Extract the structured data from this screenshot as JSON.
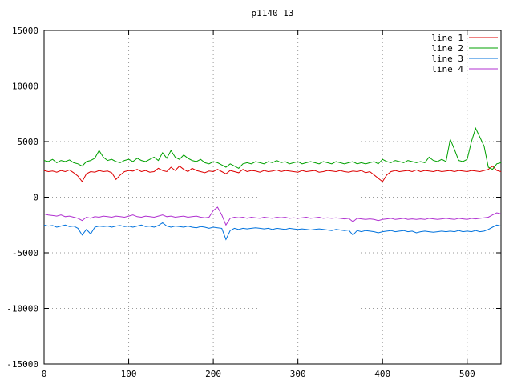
{
  "window": {
    "title": "p1140_13"
  },
  "colors": {
    "background": "#ffffff",
    "border": "#000000",
    "grid": "#9a9a9a",
    "text": "#000000"
  },
  "chart_data": {
    "type": "line",
    "title": "p1140_13",
    "xlabel": "",
    "ylabel": "",
    "xlim": [
      0,
      540
    ],
    "ylim": [
      -15000,
      15000
    ],
    "xticks": [
      0,
      100,
      200,
      300,
      400,
      500
    ],
    "yticks": [
      -15000,
      -10000,
      -5000,
      0,
      5000,
      10000,
      15000
    ],
    "grid": true,
    "grid_style": "dotted",
    "legend_position": "top-right-inside",
    "x_start": 0,
    "x_step": 5,
    "series": [
      {
        "name": "line 1",
        "color": "#dd0000",
        "values": [
          2400,
          2300,
          2350,
          2250,
          2400,
          2300,
          2450,
          2200,
          1900,
          1400,
          2100,
          2300,
          2250,
          2400,
          2300,
          2350,
          2200,
          1600,
          2000,
          2300,
          2400,
          2350,
          2500,
          2300,
          2400,
          2250,
          2300,
          2600,
          2400,
          2300,
          2700,
          2400,
          2800,
          2500,
          2300,
          2600,
          2400,
          2300,
          2200,
          2350,
          2300,
          2500,
          2300,
          2100,
          2400,
          2300,
          2200,
          2500,
          2300,
          2400,
          2350,
          2250,
          2400,
          2300,
          2350,
          2450,
          2300,
          2400,
          2350,
          2300,
          2250,
          2400,
          2300,
          2350,
          2400,
          2250,
          2300,
          2400,
          2350,
          2300,
          2400,
          2300,
          2250,
          2350,
          2300,
          2400,
          2200,
          2300,
          2000,
          1700,
          1400,
          2000,
          2300,
          2400,
          2300,
          2350,
          2400,
          2300,
          2450,
          2300,
          2400,
          2350,
          2300,
          2400,
          2300,
          2350,
          2400,
          2300,
          2400,
          2350,
          2300,
          2400,
          2350,
          2300,
          2400,
          2500,
          2800,
          2400,
          2300
        ]
      },
      {
        "name": "line 2",
        "color": "#00a000",
        "values": [
          3300,
          3200,
          3400,
          3100,
          3300,
          3200,
          3350,
          3100,
          3000,
          2800,
          3200,
          3300,
          3500,
          4200,
          3600,
          3300,
          3400,
          3200,
          3100,
          3300,
          3400,
          3200,
          3500,
          3300,
          3200,
          3400,
          3600,
          3300,
          4000,
          3500,
          4200,
          3600,
          3400,
          3800,
          3500,
          3300,
          3200,
          3400,
          3100,
          3000,
          3200,
          3100,
          2900,
          2700,
          3000,
          2800,
          2600,
          3000,
          3100,
          3000,
          3200,
          3100,
          3000,
          3200,
          3100,
          3300,
          3100,
          3200,
          3000,
          3100,
          3200,
          3000,
          3100,
          3200,
          3100,
          3000,
          3200,
          3100,
          3000,
          3200,
          3100,
          3000,
          3100,
          3200,
          3000,
          3100,
          3000,
          3100,
          3200,
          3000,
          3400,
          3200,
          3100,
          3300,
          3200,
          3100,
          3300,
          3200,
          3100,
          3200,
          3100,
          3600,
          3300,
          3200,
          3400,
          3200,
          5200,
          4300,
          3300,
          3200,
          3400,
          5000,
          6200,
          5400,
          4600,
          2700,
          2500,
          3000,
          3100
        ]
      },
      {
        "name": "line 3",
        "color": "#0072dd",
        "values": [
          -2500,
          -2600,
          -2550,
          -2700,
          -2600,
          -2500,
          -2650,
          -2600,
          -2800,
          -3400,
          -2900,
          -3300,
          -2700,
          -2600,
          -2650,
          -2600,
          -2700,
          -2600,
          -2550,
          -2650,
          -2600,
          -2700,
          -2600,
          -2500,
          -2650,
          -2600,
          -2700,
          -2550,
          -2300,
          -2600,
          -2700,
          -2600,
          -2650,
          -2700,
          -2600,
          -2700,
          -2750,
          -2650,
          -2700,
          -2800,
          -2700,
          -2750,
          -2800,
          -3800,
          -3000,
          -2800,
          -2900,
          -2800,
          -2850,
          -2800,
          -2750,
          -2800,
          -2850,
          -2800,
          -2900,
          -2800,
          -2850,
          -2900,
          -2800,
          -2850,
          -2900,
          -2850,
          -2900,
          -2950,
          -2900,
          -2850,
          -2900,
          -2950,
          -3000,
          -2900,
          -2950,
          -3000,
          -2950,
          -3400,
          -3000,
          -3100,
          -3000,
          -3050,
          -3100,
          -3200,
          -3100,
          -3050,
          -3000,
          -3100,
          -3050,
          -3000,
          -3100,
          -3050,
          -3200,
          -3100,
          -3050,
          -3100,
          -3150,
          -3100,
          -3050,
          -3100,
          -3050,
          -3100,
          -3000,
          -3100,
          -3050,
          -3100,
          -3000,
          -3100,
          -3050,
          -2900,
          -2700,
          -2500,
          -2600
        ]
      },
      {
        "name": "line 4",
        "color": "#b030d0",
        "values": [
          -1500,
          -1600,
          -1650,
          -1700,
          -1600,
          -1750,
          -1700,
          -1800,
          -1900,
          -2100,
          -1800,
          -1900,
          -1750,
          -1800,
          -1700,
          -1750,
          -1800,
          -1700,
          -1750,
          -1800,
          -1700,
          -1600,
          -1750,
          -1800,
          -1700,
          -1750,
          -1800,
          -1700,
          -1600,
          -1750,
          -1700,
          -1800,
          -1750,
          -1700,
          -1800,
          -1750,
          -1700,
          -1800,
          -1850,
          -1800,
          -1200,
          -900,
          -1600,
          -2500,
          -1900,
          -1800,
          -1850,
          -1800,
          -1900,
          -1800,
          -1850,
          -1900,
          -1800,
          -1850,
          -1900,
          -1800,
          -1850,
          -1800,
          -1900,
          -1850,
          -1900,
          -1850,
          -1800,
          -1900,
          -1850,
          -1800,
          -1900,
          -1850,
          -1900,
          -1850,
          -1900,
          -1950,
          -1900,
          -2200,
          -1900,
          -1950,
          -2000,
          -1950,
          -2000,
          -2100,
          -2000,
          -1950,
          -1900,
          -2000,
          -1950,
          -1900,
          -2000,
          -1950,
          -2000,
          -1950,
          -2000,
          -1900,
          -1950,
          -2000,
          -1950,
          -1900,
          -1950,
          -2000,
          -1900,
          -1950,
          -2000,
          -1900,
          -1950,
          -1900,
          -1850,
          -1800,
          -1600,
          -1400,
          -1500
        ]
      }
    ]
  }
}
